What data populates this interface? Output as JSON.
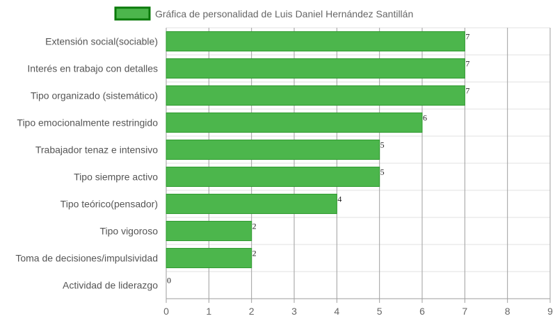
{
  "chart_data": {
    "type": "bar",
    "orientation": "horizontal",
    "categories": [
      "Extensión social(sociable)",
      "Interés en trabajo con detalles",
      "Tipo organizado (sistemático)",
      "Tipo emocionalmente restringido",
      "Trabajador tenaz e intensivo",
      "Tipo siempre activo",
      "Tipo teórico(pensador)",
      "Tipo vigoroso",
      "Toma de decisiones/impulsividad",
      "Actividad de liderazgo"
    ],
    "series": [
      {
        "name": "Gráfica de personalidad de Luis Daniel Hernández Santillán",
        "values": [
          7,
          7,
          7,
          6,
          5,
          5,
          4,
          2,
          2,
          0
        ]
      }
    ],
    "xticks": [
      "0",
      "1",
      "2",
      "3",
      "4",
      "5",
      "6",
      "7",
      "8",
      "9"
    ],
    "xlim": [
      0,
      9
    ],
    "grid": true,
    "legend_position": "top-center",
    "colors": {
      "bar_fill": "#4cb64c",
      "bar_stroke": "#2e9a2e",
      "legend_fill": "#4cb64c",
      "legend_stroke": "#0a7a0a",
      "grid": "#e2e2e2",
      "grid_major": "#9e9e9e"
    }
  }
}
